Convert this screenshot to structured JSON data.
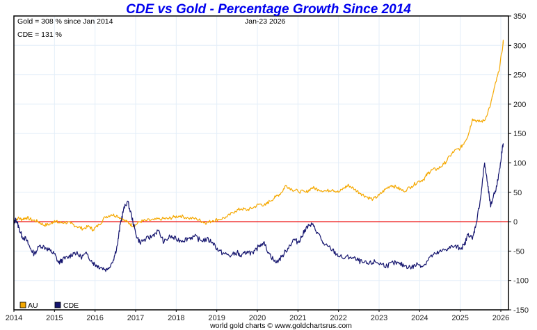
{
  "chart_data": {
    "type": "line",
    "title": "CDE vs Gold - Percentage Growth Since 2014",
    "annotations": {
      "gold_summary": "Gold = 308 % since Jan 2014",
      "cde_summary": "CDE = 131 %",
      "date": "Jan-23  2026"
    },
    "credit": "world gold charts © www.goldchartsrus.com",
    "xlabel": "",
    "ylabel": "",
    "xlim": [
      2014.0,
      2026.1
    ],
    "ylim": [
      -150,
      350
    ],
    "x_ticks": [
      "2014",
      "2015",
      "2016",
      "2017",
      "2018",
      "2019",
      "2020",
      "2021",
      "2022",
      "2023",
      "2024",
      "2025",
      "2026"
    ],
    "y_ticks": [
      "350",
      "300",
      "250",
      "200",
      "150",
      "100",
      "50",
      "0",
      "-50",
      "-100",
      "-150"
    ],
    "y_tick_values": [
      350,
      300,
      250,
      200,
      150,
      100,
      50,
      0,
      -50,
      -100,
      -150
    ],
    "grid": true,
    "reference_line": {
      "y": 0,
      "color": "#ee0000"
    },
    "legend": {
      "placement": "bottom-left",
      "entries": [
        {
          "label": "AU",
          "color": "#f5a800"
        },
        {
          "label": "CDE",
          "color": "#14146e"
        }
      ]
    },
    "series": [
      {
        "name": "AU",
        "color": "#f5a800",
        "x": [
          2014.0,
          2014.1,
          2014.2,
          2014.3,
          2014.45,
          2014.6,
          2014.75,
          2014.9,
          2015.0,
          2015.1,
          2015.25,
          2015.4,
          2015.55,
          2015.7,
          2015.85,
          2015.95,
          2016.1,
          2016.25,
          2016.4,
          2016.55,
          2016.7,
          2016.85,
          2016.95,
          2017.1,
          2017.25,
          2017.45,
          2017.65,
          2017.8,
          2017.95,
          2018.1,
          2018.3,
          2018.5,
          2018.65,
          2018.75,
          2018.9,
          2019.05,
          2019.25,
          2019.45,
          2019.6,
          2019.75,
          2019.9,
          2020.05,
          2020.2,
          2020.3,
          2020.45,
          2020.6,
          2020.7,
          2020.85,
          2021.0,
          2021.2,
          2021.35,
          2021.5,
          2021.7,
          2021.85,
          2022.0,
          2022.15,
          2022.25,
          2022.4,
          2022.55,
          2022.7,
          2022.85,
          2023.0,
          2023.15,
          2023.3,
          2023.45,
          2023.6,
          2023.8,
          2023.95,
          2024.1,
          2024.2,
          2024.3,
          2024.45,
          2024.6,
          2024.75,
          2024.85,
          2025.0,
          2025.1,
          2025.2,
          2025.3,
          2025.45,
          2025.6,
          2025.75,
          2025.85,
          2025.95,
          2026.05
        ],
        "values": [
          0,
          6,
          4,
          7,
          3,
          0,
          -6,
          -4,
          2,
          -2,
          -1,
          -3,
          -8,
          -12,
          -8,
          -14,
          -5,
          8,
          12,
          10,
          3,
          -3,
          -8,
          0,
          2,
          3,
          5,
          5,
          8,
          10,
          6,
          5,
          0,
          -2,
          2,
          4,
          8,
          18,
          22,
          20,
          24,
          30,
          28,
          35,
          42,
          50,
          62,
          55,
          52,
          50,
          58,
          55,
          52,
          55,
          50,
          58,
          62,
          55,
          48,
          42,
          38,
          45,
          55,
          62,
          58,
          52,
          60,
          68,
          72,
          82,
          88,
          90,
          98,
          112,
          120,
          125,
          135,
          148,
          175,
          170,
          172,
          200,
          230,
          255,
          300
        ],
        "last_value": 308
      },
      {
        "name": "CDE",
        "color": "#14146e",
        "x": [
          2014.0,
          2014.05,
          2014.12,
          2014.2,
          2014.3,
          2014.4,
          2014.5,
          2014.65,
          2014.8,
          2014.9,
          2015.0,
          2015.1,
          2015.2,
          2015.35,
          2015.5,
          2015.65,
          2015.8,
          2015.95,
          2016.05,
          2016.15,
          2016.3,
          2016.45,
          2016.55,
          2016.62,
          2016.7,
          2016.8,
          2016.9,
          2017.0,
          2017.1,
          2017.25,
          2017.4,
          2017.55,
          2017.7,
          2017.85,
          2018.0,
          2018.15,
          2018.3,
          2018.45,
          2018.6,
          2018.75,
          2018.9,
          2019.05,
          2019.2,
          2019.35,
          2019.5,
          2019.6,
          2019.75,
          2019.9,
          2020.05,
          2020.15,
          2020.3,
          2020.45,
          2020.6,
          2020.75,
          2020.9,
          2021.0,
          2021.1,
          2021.2,
          2021.35,
          2021.5,
          2021.65,
          2021.8,
          2021.95,
          2022.1,
          2022.3,
          2022.45,
          2022.6,
          2022.75,
          2022.9,
          2023.05,
          2023.2,
          2023.35,
          2023.5,
          2023.65,
          2023.8,
          2023.95,
          2024.1,
          2024.25,
          2024.4,
          2024.55,
          2024.7,
          2024.85,
          2025.0,
          2025.1,
          2025.2,
          2025.3,
          2025.4,
          2025.5,
          2025.6,
          2025.68,
          2025.75,
          2025.82,
          2025.9,
          2025.97,
          2026.05
        ],
        "values": [
          -5,
          5,
          -10,
          -25,
          -30,
          -45,
          -55,
          -40,
          -45,
          -50,
          -55,
          -70,
          -65,
          -60,
          -52,
          -60,
          -55,
          -70,
          -75,
          -78,
          -82,
          -65,
          -40,
          -5,
          20,
          35,
          10,
          -20,
          -35,
          -30,
          -25,
          -15,
          -35,
          -25,
          -30,
          -32,
          -28,
          -25,
          -32,
          -30,
          -35,
          -50,
          -55,
          -58,
          -52,
          -60,
          -50,
          -55,
          -40,
          -35,
          -55,
          -70,
          -60,
          -45,
          -30,
          -35,
          -25,
          -10,
          -5,
          -20,
          -40,
          -45,
          -55,
          -62,
          -60,
          -65,
          -70,
          -72,
          -68,
          -72,
          -75,
          -70,
          -72,
          -75,
          -78,
          -72,
          -75,
          -60,
          -55,
          -50,
          -45,
          -42,
          -45,
          -40,
          -20,
          -30,
          0,
          40,
          100,
          60,
          25,
          45,
          60,
          90,
          131
        ],
        "last_value": 131
      }
    ]
  }
}
